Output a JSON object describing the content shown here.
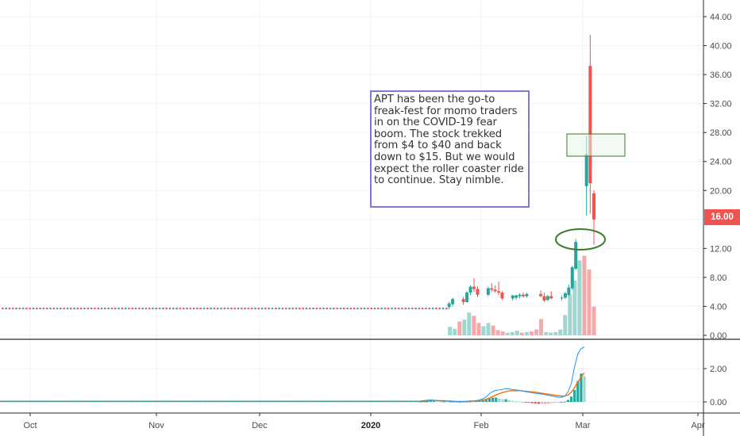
{
  "chart_data": [
    {
      "type": "candlestick",
      "symbol": "APT",
      "price_axis": {
        "ticks": [
          "44.00",
          "40.00",
          "36.00",
          "32.00",
          "28.00",
          "24.00",
          "20.00",
          "16.00",
          "12.00",
          "8.00",
          "4.00",
          "0.00"
        ],
        "range": [
          0,
          46
        ]
      },
      "x_axis": {
        "ticks": [
          "Oct",
          "Nov",
          "Dec",
          "2020",
          "Feb",
          "Mar",
          "Apr"
        ],
        "bold_tick": "2020"
      },
      "last_price": "16.00",
      "annotation": "APT has been the go-to freak-fest for momo traders in on the COVID-19 fear boom. The stock trekked from $4 to $40 and back down to $15. But we would expect the roller coaster ride to continue. Stay nimble.",
      "candles": [
        {
          "date": "2020-01-23",
          "open": 3.9,
          "high": 4.6,
          "low": 3.6,
          "close": 4.4
        },
        {
          "date": "2020-01-24",
          "open": 4.3,
          "high": 5.2,
          "low": 4.0,
          "close": 5.0
        },
        {
          "date": "2020-01-27",
          "open": 5.0,
          "high": 5.3,
          "low": 4.2,
          "close": 4.6
        },
        {
          "date": "2020-01-28",
          "open": 4.6,
          "high": 6.1,
          "low": 4.5,
          "close": 5.9
        },
        {
          "date": "2020-01-29",
          "open": 5.9,
          "high": 6.9,
          "low": 5.5,
          "close": 6.7
        },
        {
          "date": "2020-01-30",
          "open": 6.7,
          "high": 7.9,
          "low": 6.0,
          "close": 6.4
        },
        {
          "date": "2020-01-31",
          "open": 6.4,
          "high": 6.8,
          "low": 5.3,
          "close": 5.6
        },
        {
          "date": "2020-02-03",
          "open": 5.6,
          "high": 6.7,
          "low": 5.4,
          "close": 6.5
        },
        {
          "date": "2020-02-04",
          "open": 6.5,
          "high": 7.2,
          "low": 6.0,
          "close": 6.3
        },
        {
          "date": "2020-02-05",
          "open": 6.3,
          "high": 6.9,
          "low": 5.9,
          "close": 6.1
        },
        {
          "date": "2020-02-06",
          "open": 6.1,
          "high": 7.4,
          "low": 5.6,
          "close": 5.9
        },
        {
          "date": "2020-02-07",
          "open": 5.9,
          "high": 6.1,
          "low": 4.9,
          "close": 5.1
        },
        {
          "date": "2020-02-10",
          "open": 5.1,
          "high": 5.6,
          "low": 4.8,
          "close": 5.5
        },
        {
          "date": "2020-02-11",
          "open": 5.2,
          "high": 5.6,
          "low": 4.9,
          "close": 5.5
        },
        {
          "date": "2020-02-12",
          "open": 5.4,
          "high": 5.8,
          "low": 5.1,
          "close": 5.6
        },
        {
          "date": "2020-02-13",
          "open": 5.6,
          "high": 5.9,
          "low": 5.2,
          "close": 5.4
        },
        {
          "date": "2020-02-14",
          "open": 5.4,
          "high": 5.9,
          "low": 5.2,
          "close": 5.7
        },
        {
          "date": "2020-02-18",
          "open": 5.7,
          "high": 6.2,
          "low": 5.3,
          "close": 5.4
        },
        {
          "date": "2020-02-19",
          "open": 5.4,
          "high": 5.9,
          "low": 4.6,
          "close": 4.8
        },
        {
          "date": "2020-02-20",
          "open": 4.9,
          "high": 5.6,
          "low": 4.7,
          "close": 5.4
        },
        {
          "date": "2020-02-21",
          "open": 5.4,
          "high": 6.1,
          "low": 5.0,
          "close": 5.1
        },
        {
          "date": "2020-02-24",
          "open": 5.1,
          "high": 5.5,
          "low": 4.8,
          "close": 5.2
        },
        {
          "date": "2020-02-25",
          "open": 5.2,
          "high": 6.0,
          "low": 5.0,
          "close": 5.8
        },
        {
          "date": "2020-02-26",
          "open": 5.6,
          "high": 7.0,
          "low": 5.4,
          "close": 6.6
        },
        {
          "date": "2020-02-27",
          "open": 6.5,
          "high": 9.6,
          "low": 6.3,
          "close": 9.4
        },
        {
          "date": "2020-02-28",
          "open": 9.2,
          "high": 13.3,
          "low": 9.0,
          "close": 12.9
        },
        {
          "date": "2020-03-02",
          "open": 20.6,
          "high": 27.5,
          "low": 16.5,
          "close": 25.0
        },
        {
          "date": "2020-03-03",
          "open": 37.2,
          "high": 41.5,
          "low": 16.8,
          "close": 21.0
        },
        {
          "date": "2020-03-04",
          "open": 19.6,
          "high": 20.0,
          "low": 12.5,
          "close": 16.0
        }
      ],
      "flat_period": {
        "start": "2019-09-20",
        "end": "2020-01-22",
        "price": 3.7
      },
      "volume": [
        {
          "v": 1.3,
          "up": true
        },
        {
          "v": 1.0,
          "up": true
        },
        {
          "v": 2.1,
          "up": false
        },
        {
          "v": 2.4,
          "up": true
        },
        {
          "v": 3.5,
          "up": true
        },
        {
          "v": 3.0,
          "up": false
        },
        {
          "v": 1.9,
          "up": false
        },
        {
          "v": 1.4,
          "up": true
        },
        {
          "v": 1.9,
          "up": true
        },
        {
          "v": 1.5,
          "up": false
        },
        {
          "v": 0.8,
          "up": false
        },
        {
          "v": 0.6,
          "up": false
        },
        {
          "v": 0.4,
          "up": true
        },
        {
          "v": 0.5,
          "up": true
        },
        {
          "v": 0.7,
          "up": true
        },
        {
          "v": 0.4,
          "up": false
        },
        {
          "v": 0.5,
          "up": true
        },
        {
          "v": 0.6,
          "up": false
        },
        {
          "v": 0.9,
          "up": false
        },
        {
          "v": 2.5,
          "up": false
        },
        {
          "v": 0.5,
          "up": true
        },
        {
          "v": 0.4,
          "up": true
        },
        {
          "v": 0.5,
          "up": true
        },
        {
          "v": 0.9,
          "up": true
        },
        {
          "v": 3.1,
          "up": true
        },
        {
          "v": 6.3,
          "up": true
        },
        {
          "v": 8.4,
          "up": true
        },
        {
          "v": 11.5,
          "up": true
        },
        {
          "v": 12.2,
          "up": false
        },
        {
          "v": 10.1,
          "up": false
        },
        {
          "v": 4.4,
          "up": false
        }
      ]
    },
    {
      "type": "macd",
      "y_axis": {
        "ticks": [
          "2.00",
          "0.00"
        ],
        "range": [
          -0.4,
          3.4
        ]
      },
      "macd_line": [
        0.05,
        0.08,
        0.1,
        0.12,
        0.1,
        0.08,
        0.06,
        0.06,
        0.05,
        0.04,
        0.03,
        0.02,
        0.02,
        0.02,
        0.04,
        0.06,
        0.05,
        0.08,
        0.12,
        0.2,
        0.3,
        0.5,
        0.62,
        0.7,
        0.72,
        0.75,
        0.8,
        0.78,
        0.74,
        0.72,
        0.7,
        0.66,
        0.62,
        0.58,
        0.55,
        0.52,
        0.5,
        0.47,
        0.44,
        0.4,
        0.35,
        0.32,
        0.28,
        0.28,
        0.35,
        0.6,
        1.1,
        2.1,
        2.9,
        3.2,
        3.3
      ],
      "signal_line": [
        0.05,
        0.06,
        0.07,
        0.08,
        0.09,
        0.08,
        0.07,
        0.07,
        0.06,
        0.05,
        0.04,
        0.03,
        0.03,
        0.03,
        0.03,
        0.04,
        0.05,
        0.06,
        0.08,
        0.12,
        0.16,
        0.24,
        0.33,
        0.42,
        0.5,
        0.56,
        0.62,
        0.66,
        0.67,
        0.67,
        0.68,
        0.66,
        0.64,
        0.62,
        0.6,
        0.58,
        0.55,
        0.52,
        0.49,
        0.46,
        0.43,
        0.4,
        0.37,
        0.35,
        0.35,
        0.42,
        0.58,
        0.85,
        1.2,
        1.5,
        1.75
      ],
      "histogram": [
        0.02,
        0.03,
        0.03,
        0.05,
        0.05,
        0.04,
        0.03,
        0.03,
        0.02,
        0.02,
        0.02,
        0.01,
        0.01,
        0.0,
        0.02,
        0.03,
        0.02,
        0.04,
        0.06,
        0.1,
        0.14,
        0.24,
        0.26,
        0.26,
        0.2,
        0.16,
        0.16,
        0.1,
        0.06,
        0.04,
        0.02,
        0.0,
        -0.03,
        -0.05,
        -0.08,
        -0.1,
        -0.12,
        -0.12,
        -0.12,
        -0.1,
        -0.06,
        -0.04,
        -0.02,
        0.0,
        0.02,
        0.12,
        0.32,
        0.72,
        1.25,
        1.7,
        1.55
      ]
    }
  ]
}
